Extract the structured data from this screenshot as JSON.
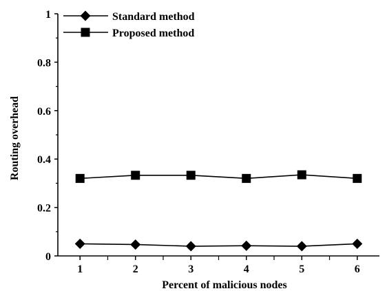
{
  "chart_data": {
    "type": "line",
    "xlabel": "Percent of malicious nodes",
    "ylabel": "Routing overhead",
    "x": [
      1,
      2,
      3,
      4,
      5,
      6
    ],
    "x_tick_labels": [
      "1",
      "2",
      "3",
      "4",
      "5",
      "6"
    ],
    "y_tick_labels": [
      "0",
      "0.2",
      "0.4",
      "0.6",
      "0.8",
      "1"
    ],
    "ylim": [
      0,
      1
    ],
    "grid": false,
    "legend_position": "top-left",
    "series": [
      {
        "name": "Standard method",
        "marker": "diamond",
        "color": "#000000",
        "values": [
          0.05,
          0.047,
          0.04,
          0.042,
          0.04,
          0.05
        ]
      },
      {
        "name": "Proposed method",
        "marker": "square",
        "color": "#000000",
        "values": [
          0.32,
          0.333,
          0.333,
          0.32,
          0.335,
          0.32
        ]
      }
    ]
  }
}
